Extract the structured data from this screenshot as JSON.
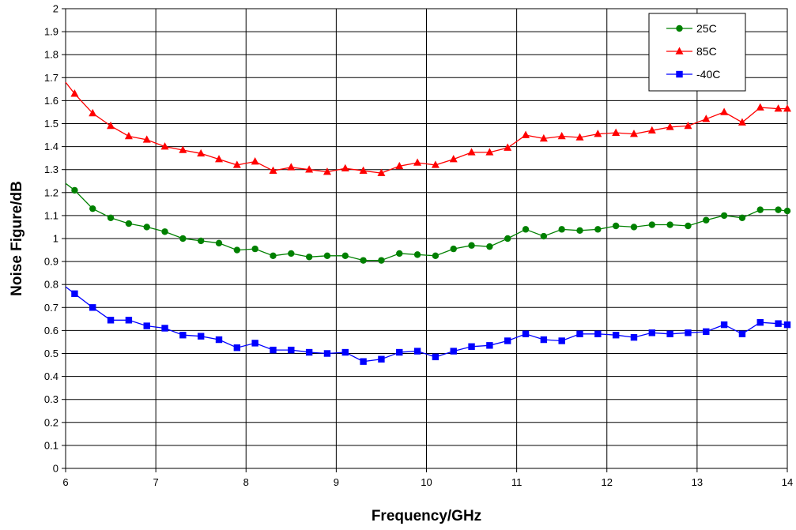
{
  "chart_data": {
    "type": "line",
    "xlabel": "Frequency/GHz",
    "ylabel": "Noise Figure/dB",
    "xlim": [
      6,
      14
    ],
    "ylim": [
      0,
      2
    ],
    "x_ticks": [
      "6",
      "7",
      "8",
      "9",
      "10",
      "11",
      "12",
      "13",
      "14"
    ],
    "y_ticks": [
      "0",
      "0.1",
      "0.2",
      "0.3",
      "0.4",
      "0.5",
      "0.6",
      "0.7",
      "0.8",
      "0.9",
      "1",
      "1.1",
      "1.2",
      "1.3",
      "1.4",
      "1.5",
      "1.6",
      "1.7",
      "1.8",
      "1.9",
      "2"
    ],
    "grid": true,
    "legend_position": "top-right",
    "x": [
      6.0,
      6.1,
      6.3,
      6.5,
      6.7,
      6.9,
      7.1,
      7.3,
      7.5,
      7.7,
      7.9,
      8.1,
      8.3,
      8.5,
      8.7,
      8.9,
      9.1,
      9.3,
      9.5,
      9.7,
      9.9,
      10.1,
      10.3,
      10.5,
      10.7,
      10.9,
      11.1,
      11.3,
      11.5,
      11.7,
      11.9,
      12.1,
      12.3,
      12.5,
      12.7,
      12.9,
      13.1,
      13.3,
      13.5,
      13.7,
      13.9,
      14.0
    ],
    "series": [
      {
        "name": "25C",
        "color": "#008000",
        "marker": "circle",
        "values": [
          1.24,
          1.21,
          1.13,
          1.09,
          1.065,
          1.05,
          1.03,
          1.0,
          0.99,
          0.98,
          0.95,
          0.955,
          0.925,
          0.935,
          0.92,
          0.925,
          0.925,
          0.905,
          0.905,
          0.935,
          0.93,
          0.925,
          0.955,
          0.97,
          0.965,
          1.0,
          1.04,
          1.01,
          1.04,
          1.035,
          1.04,
          1.055,
          1.05,
          1.06,
          1.06,
          1.055,
          1.08,
          1.1,
          1.09,
          1.125,
          1.125,
          1.12
        ],
        "plotted_from": 1
      },
      {
        "name": "85C",
        "color": "#ff0000",
        "marker": "triangle",
        "values": [
          1.68,
          1.63,
          1.545,
          1.49,
          1.445,
          1.43,
          1.4,
          1.385,
          1.37,
          1.345,
          1.32,
          1.335,
          1.295,
          1.31,
          1.3,
          1.29,
          1.305,
          1.295,
          1.285,
          1.315,
          1.33,
          1.32,
          1.345,
          1.375,
          1.375,
          1.395,
          1.45,
          1.435,
          1.445,
          1.44,
          1.455,
          1.46,
          1.455,
          1.47,
          1.485,
          1.49,
          1.52,
          1.55,
          1.505,
          1.57,
          1.565,
          1.565
        ],
        "plotted_from": 1
      },
      {
        "name": "-40C",
        "color": "#0000ff",
        "marker": "square",
        "values": [
          0.79,
          0.76,
          0.7,
          0.645,
          0.645,
          0.62,
          0.61,
          0.58,
          0.575,
          0.56,
          0.525,
          0.545,
          0.515,
          0.515,
          0.505,
          0.5,
          0.505,
          0.465,
          0.475,
          0.505,
          0.51,
          0.485,
          0.51,
          0.53,
          0.535,
          0.555,
          0.585,
          0.56,
          0.555,
          0.585,
          0.585,
          0.58,
          0.57,
          0.59,
          0.585,
          0.59,
          0.595,
          0.625,
          0.585,
          0.635,
          0.63,
          0.625
        ],
        "plotted_from": 1
      }
    ]
  }
}
